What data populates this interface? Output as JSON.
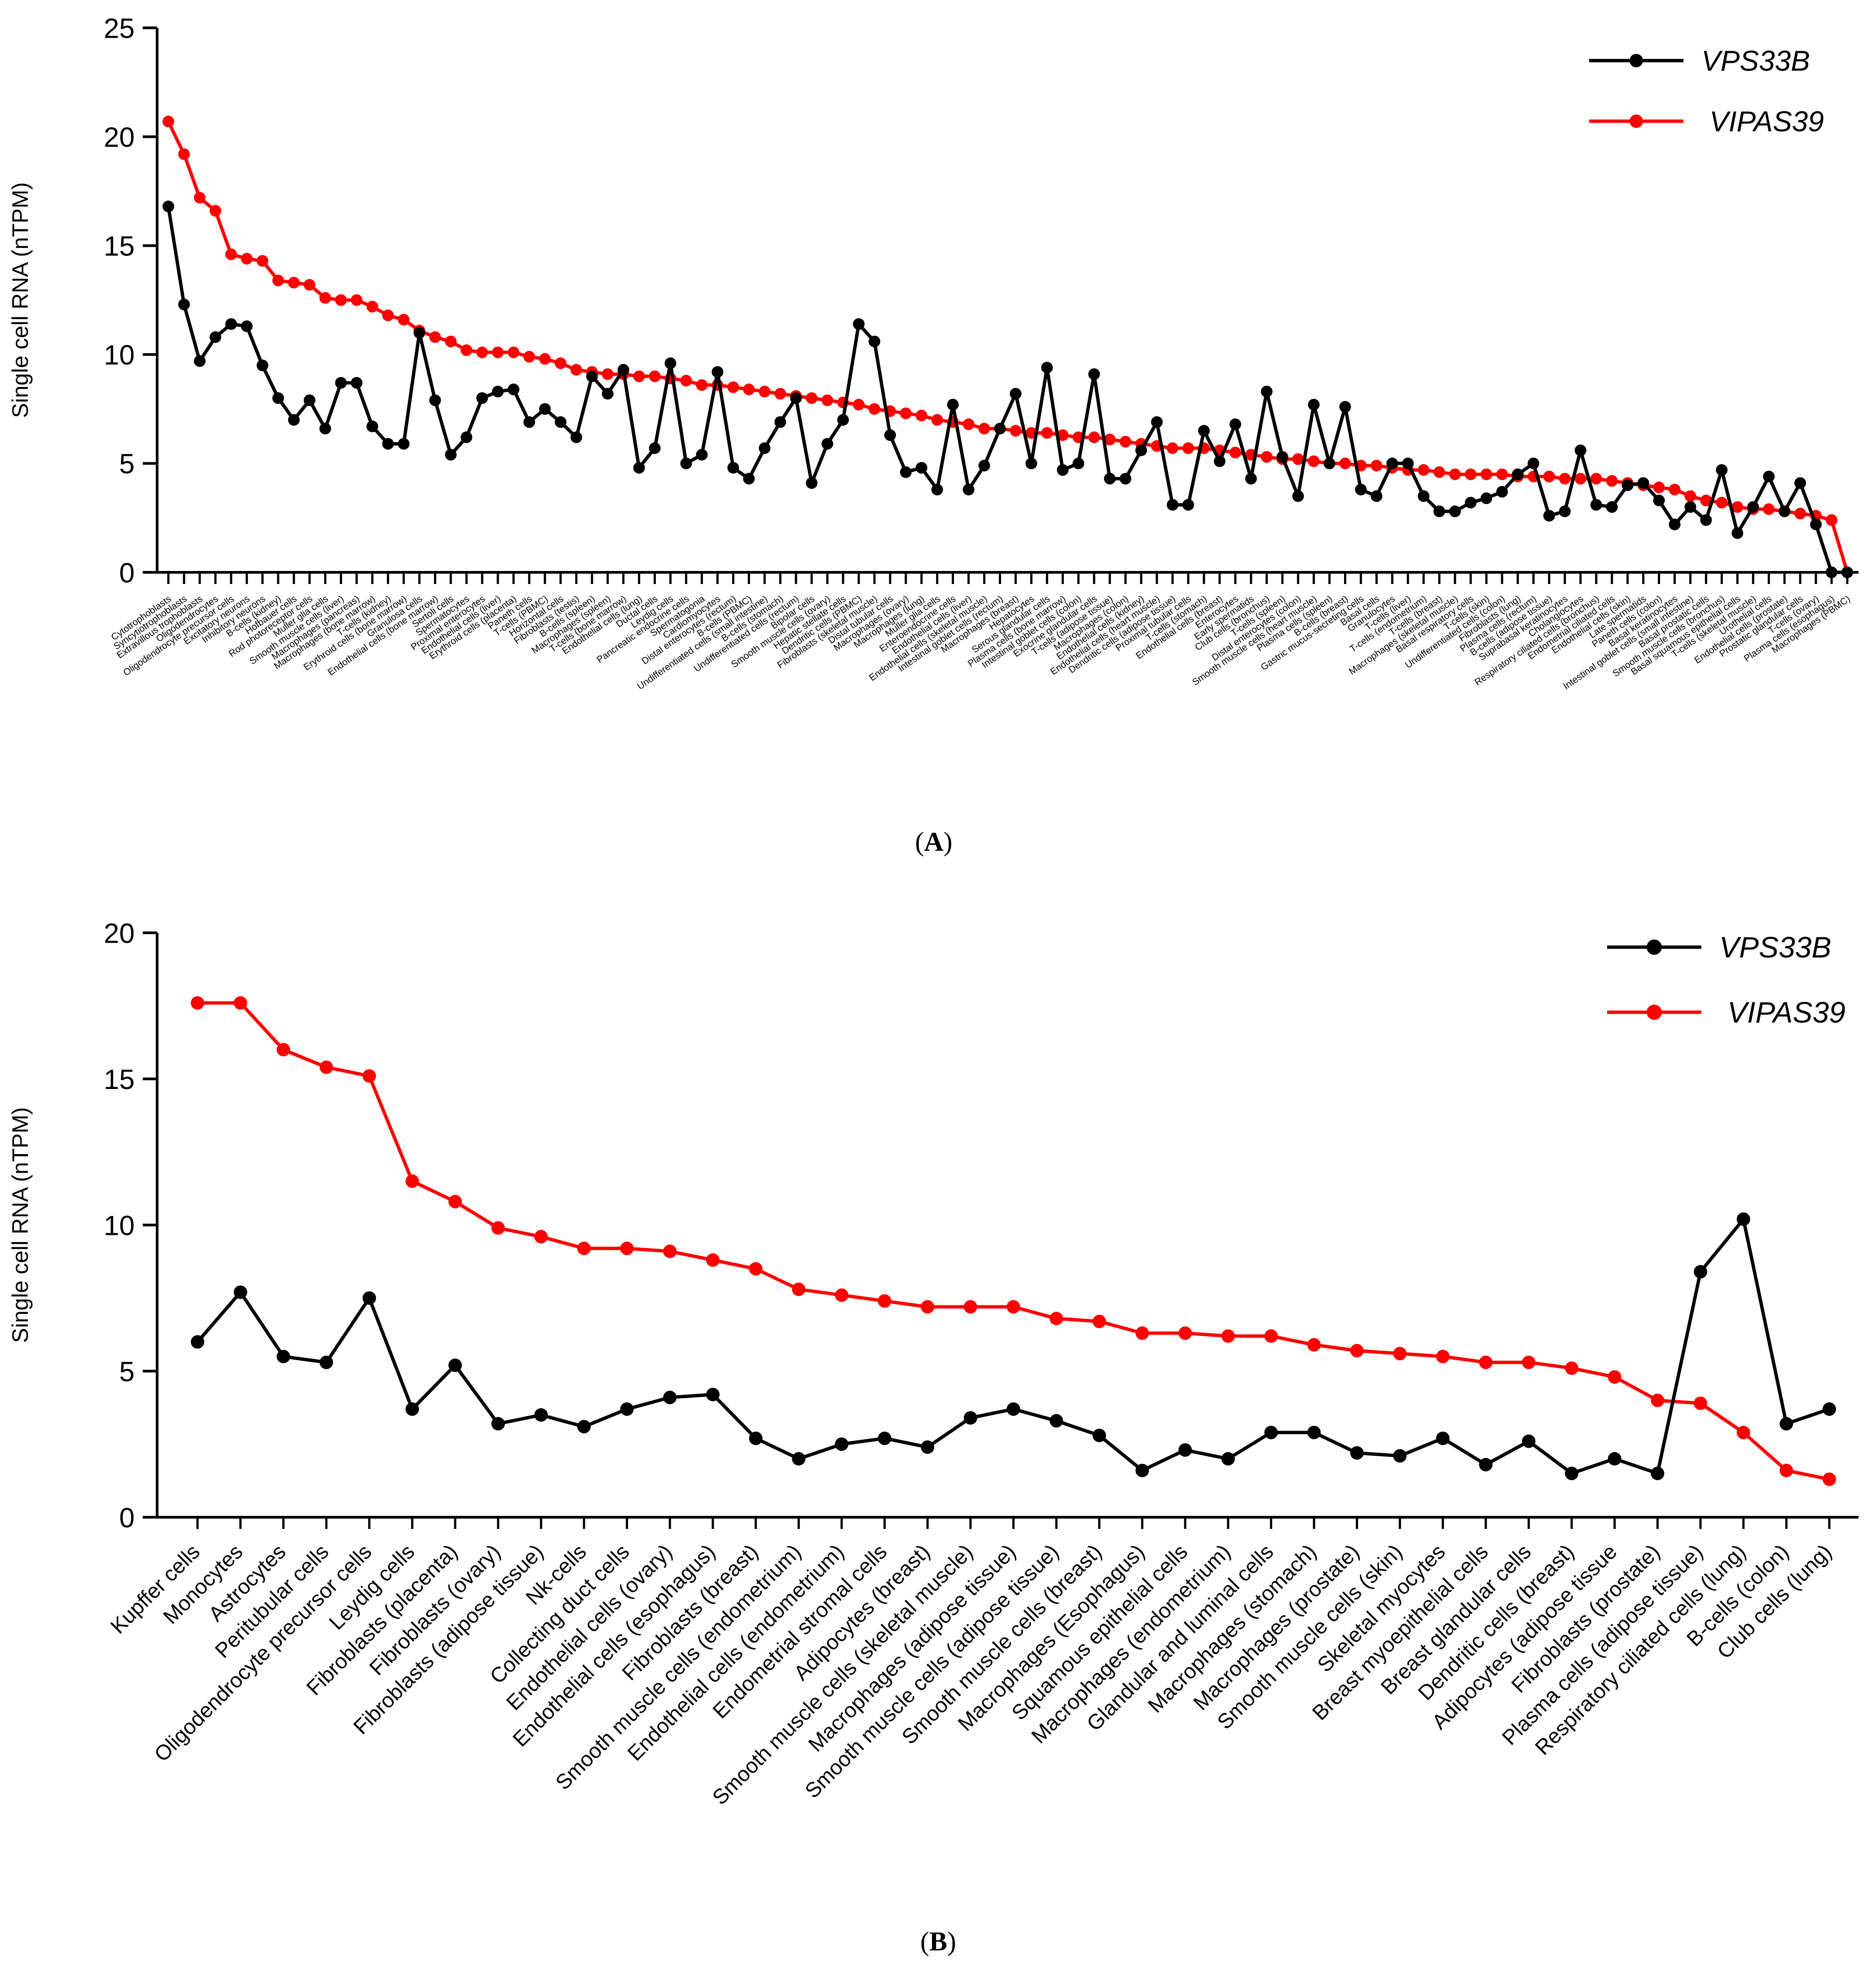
{
  "chart_data": [
    {
      "type": "line",
      "panel_label": "(A)",
      "ylabel": "Single cell RNA (nTPM)",
      "ylim": [
        0,
        25
      ],
      "yticks": [
        0,
        5,
        10,
        15,
        20,
        25
      ],
      "grid": false,
      "legend_placement": "top-right",
      "categories": [
        "Cytotrophoblasts",
        "Syncytiotrophoblasts",
        "Extravillous trophoblasts",
        "Oligodendrocytes",
        "Oligodendrocyte precursor cells",
        "Excitatory neurons",
        "Inhibitory neurons",
        "B-cells (kidney)",
        "Hofbauer cells",
        "Rod photoreceptor cells",
        "Muller glia cells",
        "Smooth muscle cells (liver)",
        "Macrophages (pancreas)",
        "Macrophages (bone marrow)",
        "T-cells (kidney)",
        "Erythroid cells (bone marrow)",
        "Granulosa cells",
        "Endothelial cells (bone marrow)",
        "Sertoli cells",
        "Spermatocytes",
        "Proximal enterocytes",
        "Endothelial cells (liver)",
        "Erythroid cells (placenta)",
        "Paneth cells",
        "T-cells (PBMC)",
        "Horizontal cells",
        "Fibroblasts (testis)",
        "B-cells (spleen)",
        "Macrophages (spleen)",
        "T-cells (bone marrow)",
        "Endothelial cells (lung)",
        "Ductal cells",
        "Leydig cells",
        "Pancreatic endocrine cells",
        "Spermatogonia",
        "Cardiomyocytes",
        "Distal enterocytes (rectum)",
        "B-cells (PBMC)",
        "Undifferentiated cells (small intestine)",
        "B-cells (stomach)",
        "Undifferentiated cells (rectum)",
        "Bipolar cells",
        "Smooth muscle cells (ovary)",
        "Hepatic stellate cells",
        "Dendritic cells (PBMC)",
        "Fibroblasts (skeletal muscle)",
        "Distal tubular cells",
        "Macrophages (ovary)",
        "Macrophages (lung)",
        "Muller glia cells",
        "Enteroendocrine cells",
        "Endothelial cells (liver)",
        "Endothelial cells (skeletal muscle)",
        "Intestinal goblet cells (rectum)",
        "Macrophages (breast)",
        "Hepatocytes",
        "Serous glandular cells",
        "Plasma cells (bone marrow)",
        "Intestinal goblet cells (colon)",
        "Exocrine glandular cells",
        "T-cells (adipose tissue)",
        "Macrophages (colon)",
        "Endothelial cells (kidney)",
        "Endothelial cells (heart muscle)",
        "Dendritic cells (adipose tissue)",
        "Proximal tubular cells",
        "T-cells (stomach)",
        "Endothelial cells (breast)",
        "Enterocytes",
        "Early spermatids",
        "Club cells (bronchus)",
        "T-cells (spleen)",
        "Distal enterocytes (colon)",
        "Smooth muscle cells (heart muscle)",
        "Plasma cells (spleen)",
        "B-cells (breast)",
        "Gastric mucus-secreting cells",
        "Basal cells",
        "Granulocytes",
        "T-cells (liver)",
        "T-cells (endometrium)",
        "T-cells (breast)",
        "Macrophages (skeletal muscle)",
        "Basal respiratory cells",
        "T-cells (skin)",
        "Undifferentiated cells (colon)",
        "Fibroblasts (lung)",
        "Plasma cells (rectum)",
        "B-cells (adipose tissue)",
        "Suprabasal keratinocytes",
        "Cholangiocytes",
        "Respiratory ciliated cells (bronchus)",
        "Endometrial ciliated cells",
        "Endothelial cells (skin)",
        "Late spermatids",
        "Paneth cells (colon)",
        "Basal keratinocytes",
        "Intestinal goblet cells (small intestine)",
        "Basal prostatic cells",
        "Smooth muscle cells (bronchus)",
        "Basal squamous epithelial cells",
        "T-cells (skeletal muscle)",
        "Urothelial cells",
        "Endothelial cells (prostate)",
        "Prostatic glandular cells",
        "T-cells (ovary)",
        "Plasma cells (esophagus)",
        "Macrophages (PBMC)"
      ],
      "series": [
        {
          "name": "VPS33B",
          "color": "#000000",
          "values": [
            16.8,
            12.3,
            9.7,
            10.8,
            11.4,
            11.3,
            9.5,
            8.0,
            7.0,
            7.9,
            6.6,
            8.7,
            8.7,
            6.7,
            5.9,
            5.9,
            11.0,
            7.9,
            5.4,
            6.2,
            8.0,
            8.3,
            8.4,
            6.9,
            7.5,
            6.9,
            6.2,
            9.0,
            8.2,
            9.3,
            4.8,
            5.7,
            9.6,
            5.0,
            5.4,
            9.2,
            4.8,
            4.3,
            5.7,
            6.9,
            8.0,
            4.1,
            5.9,
            7.0,
            11.4,
            10.6,
            6.3,
            4.6,
            4.8,
            3.8,
            7.7,
            3.8,
            4.9,
            6.6,
            8.2,
            5.0,
            9.4,
            4.7,
            5.0,
            9.1,
            4.3,
            4.3,
            5.6,
            6.9,
            3.1,
            3.1,
            6.5,
            5.1,
            6.8,
            4.3,
            8.3,
            5.3,
            3.5,
            7.7,
            5.0,
            7.6,
            3.8,
            3.5,
            5.0,
            5.0,
            3.5,
            2.8,
            2.8,
            3.2,
            3.4,
            3.7,
            4.5,
            5.0,
            2.6,
            2.8,
            5.6,
            3.1,
            3.0,
            4.0,
            4.1,
            3.3,
            2.2,
            3.0,
            2.4,
            4.7,
            1.8,
            3.0,
            4.4,
            2.8,
            4.1,
            2.2,
            0.0,
            0.0
          ]
        },
        {
          "name": "VIPAS39",
          "color": "#ff0000",
          "values": [
            20.7,
            19.2,
            17.2,
            16.6,
            14.6,
            14.4,
            14.3,
            13.4,
            13.3,
            13.2,
            12.6,
            12.5,
            12.5,
            12.2,
            11.8,
            11.6,
            11.1,
            10.8,
            10.6,
            10.2,
            10.1,
            10.1,
            10.1,
            9.9,
            9.8,
            9.6,
            9.3,
            9.2,
            9.1,
            9.1,
            9.0,
            9.0,
            8.9,
            8.8,
            8.6,
            8.6,
            8.5,
            8.4,
            8.3,
            8.2,
            8.1,
            8.0,
            7.9,
            7.8,
            7.7,
            7.5,
            7.4,
            7.3,
            7.2,
            7.0,
            6.9,
            6.8,
            6.6,
            6.6,
            6.5,
            6.4,
            6.4,
            6.3,
            6.2,
            6.2,
            6.1,
            6.0,
            5.9,
            5.8,
            5.7,
            5.7,
            5.7,
            5.6,
            5.5,
            5.4,
            5.3,
            5.2,
            5.2,
            5.1,
            5.0,
            5.0,
            4.9,
            4.9,
            4.8,
            4.7,
            4.7,
            4.6,
            4.5,
            4.5,
            4.5,
            4.5,
            4.4,
            4.4,
            4.4,
            4.3,
            4.3,
            4.3,
            4.2,
            4.1,
            4.0,
            3.9,
            3.8,
            3.5,
            3.3,
            3.2,
            3.0,
            2.9,
            2.9,
            2.8,
            2.7,
            2.6,
            2.4,
            0.0
          ]
        }
      ]
    },
    {
      "type": "line",
      "panel_label": "(B)",
      "ylabel": "Single cell RNA (nTPM)",
      "ylim": [
        0,
        20
      ],
      "yticks": [
        0,
        5,
        10,
        15,
        20
      ],
      "grid": false,
      "legend_placement": "top-right",
      "categories": [
        "Kupffer cells",
        "Monocytes",
        "Astrocytes",
        "Peritubular cells",
        "Oligodendrocyte precursor cells",
        "Leydig cells",
        "Fibroblasts (placenta)",
        "Fibroblasts (ovary)",
        "Fibroblasts (adipose tissue)",
        "Nk-cells",
        "Collecting duct cells",
        "Endothelial cells (ovary)",
        "Endothelial cells (esophagus)",
        "Fibroblasts (breast)",
        "Smooth muscle cells (endometrium)",
        "Endothelial cells (endometrium)",
        "Endometrial stromal cells",
        "Adipocytes (breast)",
        "Smooth muscle cells (skeletal muscle)",
        "Macrophages (adipose tissue)",
        "Smooth muscle cells (adipose tissue)",
        "Smooth muscle cells (breast)",
        "Macrophages (Esophagus)",
        "Squamous epithelial cells",
        "Macrophages (endometrium)",
        "Glandular and luminal cells",
        "Macrophages (stomach)",
        "Macrophages (prostate)",
        "Smooth muscle cells (skin)",
        "Skeletal myocytes",
        "Breast myoepithelial cells",
        "Breast glandular cells",
        "Dendritic cells (breast)",
        "Adipocytes (adipose tissue",
        "Fibroblasts (prostate)",
        "Plasma cells (adipose tissue)",
        "Respiratory ciliated cells (lung)",
        "B-cells (colon)",
        "Club cells (lung)"
      ],
      "series": [
        {
          "name": "VPS33B",
          "color": "#000000",
          "values": [
            6.0,
            7.7,
            5.5,
            5.3,
            7.5,
            3.7,
            5.2,
            3.2,
            3.5,
            3.1,
            3.7,
            4.1,
            4.2,
            2.7,
            2.0,
            2.5,
            2.7,
            2.4,
            3.4,
            3.7,
            3.3,
            2.8,
            1.6,
            2.3,
            2.0,
            2.9,
            2.9,
            2.2,
            2.1,
            2.7,
            1.8,
            2.6,
            1.5,
            2.0,
            1.5,
            8.4,
            10.2,
            3.2,
            3.7
          ]
        },
        {
          "name": "VIPAS39",
          "color": "#ff0000",
          "values": [
            17.6,
            17.6,
            16.0,
            15.4,
            15.1,
            11.5,
            10.8,
            9.9,
            9.6,
            9.2,
            9.2,
            9.1,
            8.8,
            8.5,
            7.8,
            7.6,
            7.4,
            7.2,
            7.2,
            7.2,
            6.8,
            6.7,
            6.3,
            6.3,
            6.2,
            6.2,
            5.9,
            5.7,
            5.6,
            5.5,
            5.3,
            5.3,
            5.1,
            4.8,
            4.0,
            3.9,
            2.9,
            1.6,
            1.3
          ]
        }
      ]
    }
  ]
}
